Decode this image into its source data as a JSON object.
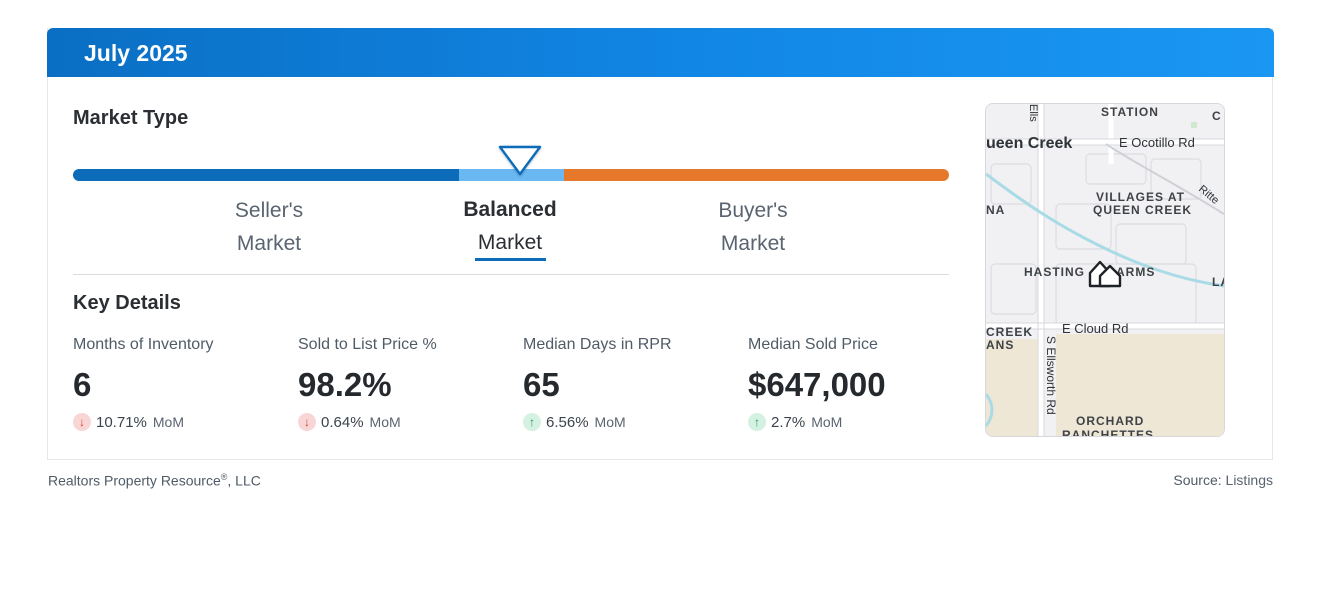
{
  "header": {
    "title": "July 2025"
  },
  "market_type": {
    "title": "Market Type",
    "current": "Balanced",
    "segments": [
      {
        "line1": "Seller's",
        "line2": "Market",
        "color": "#0c6cba"
      },
      {
        "line1": "Balanced",
        "line2": "Market",
        "color": "#69b8f2"
      },
      {
        "line1": "Buyer's",
        "line2": "Market",
        "color": "#e6782b"
      }
    ]
  },
  "key_details": {
    "title": "Key Details",
    "metrics": [
      {
        "label": "Months of Inventory",
        "value": "6",
        "change": "10.71%",
        "unit": "MoM",
        "direction": "down",
        "arrow": "↓"
      },
      {
        "label": "Sold to List Price %",
        "value": "98.2%",
        "change": "0.64%",
        "unit": "MoM",
        "direction": "down",
        "arrow": "↓"
      },
      {
        "label": "Median Days in RPR",
        "value": "65",
        "change": "6.56%",
        "unit": "MoM",
        "direction": "up",
        "arrow": "↑"
      },
      {
        "label": "Median Sold Price",
        "value": "$647,000",
        "change": "2.7%",
        "unit": "MoM",
        "direction": "up",
        "arrow": "↑"
      }
    ]
  },
  "map": {
    "labels": {
      "station": "STATION",
      "c": "C",
      "queen_creek": "ueen Creek",
      "e_ocotillo": "E Ocotillo Rd",
      "ells": "Ells",
      "villages_1": "VILLAGES AT",
      "villages_2": "QUEEN CREEK",
      "ritte": "Ritte",
      "na": "NA",
      "hastings": "HASTING",
      "arms": "ARMS",
      "la": "LA",
      "creek": "CREEK",
      "ans": "ANS",
      "e_cloud": "E Cloud Rd",
      "s_ellsworth": "S Ellsworth Rd",
      "orchard": "ORCHARD",
      "ranchettes": "RANCHETTES"
    },
    "marker_icon": "home-marker-icon"
  },
  "footer": {
    "company": "Realtors Property Resource",
    "registered": "®",
    "company_suffix": ", LLC",
    "source_label": "Source:",
    "source_value": "Listings"
  }
}
